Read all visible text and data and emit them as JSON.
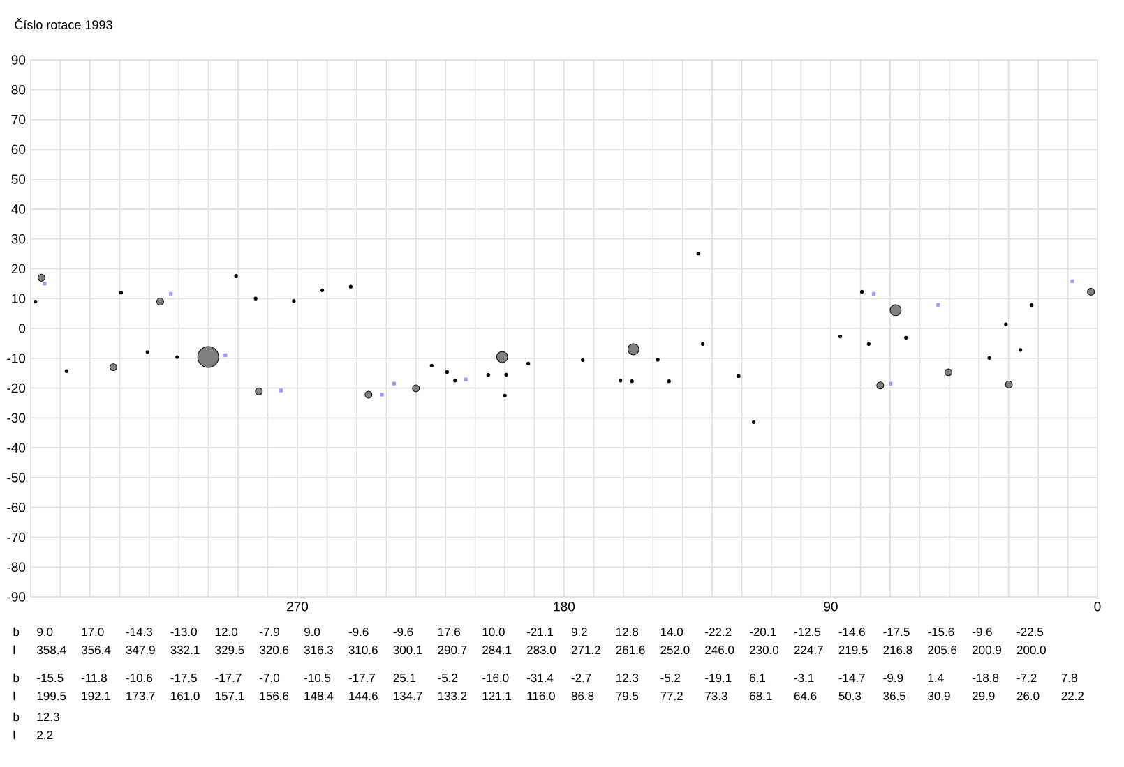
{
  "chart_data": {
    "type": "bubble",
    "title": "Číslo rotace 1993",
    "xlabel": "l",
    "ylabel": "b",
    "annotations": [
      "9.0",
      "358.4",
      "17.0",
      "356.4",
      "-14.3",
      "347.9",
      "-13.0",
      "332.1",
      "12.0",
      "329.5",
      "-7.9",
      "320.6",
      "9.0",
      "316.3",
      "-9.6",
      "310.6",
      "-9.6",
      "300.1",
      "17.6",
      "290.7",
      "10.0",
      "284.1",
      "-21.1",
      "283.0",
      "9.2",
      "271.2",
      "12.8",
      "261.6",
      "14.0",
      "252.0",
      "-22.2",
      "246.0",
      "-20.1",
      "230.0",
      "-12.5",
      "224.7",
      "-14.6",
      "219.5",
      "-17.5",
      "216.8",
      "-15.6",
      "205.6",
      "-9.6",
      "200.9",
      "-22.5",
      "200.0",
      "-15.5",
      "199.5",
      "-11.8",
      "192.1",
      "-10.6",
      "173.7",
      "-17.5",
      "161.0",
      "-17.7",
      "157.1",
      "-7.0",
      "156.6",
      "-10.5",
      "148.4",
      "-17.7",
      "144.6",
      "25.1",
      "134.7",
      "-5.2",
      "133.2",
      "-16.0",
      "121.1",
      "-31.4",
      "116.0",
      "-2.7",
      "86.8",
      "12.3",
      "79.5",
      "-5.2",
      "77.2",
      "-19.1",
      "73.3",
      "6.1",
      "68.1",
      "-3.1",
      "64.6",
      "-14.7",
      "50.3",
      "-9.9",
      "36.5",
      "1.4",
      "30.9",
      "-18.8",
      "29.9",
      "-7.2",
      "26.0",
      "7.8",
      "22.2",
      "12.3",
      "2.2"
    ],
    "xlim": [
      360,
      0
    ],
    "ylim": [
      -90,
      90
    ],
    "grid": true,
    "xticks": [
      {
        "value": 360,
        "label": null
      },
      {
        "value": 350,
        "label": null
      },
      {
        "value": 340,
        "label": null
      },
      {
        "value": 330,
        "label": null
      },
      {
        "value": 320,
        "label": null
      },
      {
        "value": 310,
        "label": null
      },
      {
        "value": 300,
        "label": null
      },
      {
        "value": 290,
        "label": null
      },
      {
        "value": 280,
        "label": null
      },
      270,
      {
        "value": 260,
        "label": null
      },
      {
        "value": 250,
        "label": null
      },
      {
        "value": 240,
        "label": null
      },
      {
        "value": 230,
        "label": null
      },
      {
        "value": 220,
        "label": null
      },
      {
        "value": 210,
        "label": null
      },
      {
        "value": 200,
        "label": null
      },
      {
        "value": 190,
        "label": null
      },
      180,
      {
        "value": 170,
        "label": null
      },
      {
        "value": 160,
        "label": null
      },
      {
        "value": 150,
        "label": null
      },
      {
        "value": 140,
        "label": null
      },
      {
        "value": 130,
        "label": null
      },
      {
        "value": 120,
        "label": null
      },
      {
        "value": 110,
        "label": null
      },
      {
        "value": 100,
        "label": null
      },
      90,
      {
        "value": 80,
        "label": null
      },
      {
        "value": 70,
        "label": null
      },
      {
        "value": 60,
        "label": null
      },
      {
        "value": 50,
        "label": null
      },
      {
        "value": 40,
        "label": null
      },
      {
        "value": 30,
        "label": null
      },
      {
        "value": 20,
        "label": null
      },
      {
        "value": 10,
        "label": null
      },
      0
    ],
    "yticks": [
      -90,
      -80,
      -70,
      -60,
      -50,
      -40,
      -30,
      -20,
      -10,
      0,
      10,
      20,
      30,
      40,
      50,
      60,
      70,
      80,
      90
    ],
    "series": [
      {
        "x": [
          358.4,
          356.4,
          347.9,
          332.1,
          329.5,
          320.6,
          316.3,
          310.6,
          300.1,
          290.7,
          284.1,
          283.0,
          271.2,
          261.6,
          252.0,
          246.0,
          230.0,
          224.7,
          219.5,
          216.8,
          205.6,
          200.9,
          200.0,
          199.5,
          192.1,
          173.7,
          161.0,
          157.1,
          156.6,
          148.4,
          144.6,
          134.7,
          133.2,
          121.1,
          116.0,
          86.8,
          79.5,
          77.2,
          73.3,
          68.1,
          64.6,
          50.3,
          36.5,
          30.9,
          29.9,
          26.0,
          22.2,
          2.2
        ],
        "values": [
          9.0,
          17.0,
          -14.3,
          -13.0,
          12.0,
          -7.9,
          9.0,
          -9.6,
          -9.6,
          17.6,
          10.0,
          -21.1,
          9.2,
          12.8,
          14.0,
          -22.2,
          -20.1,
          -12.5,
          -14.6,
          -17.5,
          -15.6,
          -9.6,
          -22.5,
          -15.5,
          -11.8,
          -10.6,
          -17.5,
          -17.7,
          -7.0,
          -10.5,
          -17.7,
          25.1,
          -5.2,
          -16.0,
          -31.4,
          -2.7,
          12.3,
          -5.2,
          -19.1,
          6.1,
          -3.1,
          -14.7,
          -9.9,
          1.4,
          -18.8,
          -7.2,
          7.8,
          12.3
        ],
        "sizes": [
          0.02,
          0.11,
          0.02,
          0.11,
          0.02,
          0.02,
          0.11,
          0.02,
          1,
          0.02,
          0.02,
          0.11,
          0.02,
          0.02,
          0.02,
          0.11,
          0.11,
          0.02,
          0.02,
          0.02,
          0.02,
          0.28,
          0.02,
          0.02,
          0.02,
          0.02,
          0.02,
          0.02,
          0.28,
          0.02,
          0.02,
          0.02,
          0.02,
          0.02,
          0.02,
          0.02,
          0.02,
          0.02,
          0.11,
          0.28,
          0.02,
          0.11,
          0.02,
          0.02,
          0.11,
          0.02,
          0.02,
          0.11
        ],
        "colors": [
          "#000000",
          "#808080",
          "#000000",
          "#808080",
          "#000000",
          "#000000",
          "#808080",
          "#000000",
          "#808080",
          "#000000",
          "#000000",
          "#808080",
          "#000000",
          "#000000",
          "#000000",
          "#808080",
          "#808080",
          "#000000",
          "#000000",
          "#000000",
          "#000000",
          "#808080",
          "#000000",
          "#000000",
          "#000000",
          "#000000",
          "#000000",
          "#000000",
          "#808080",
          "#000000",
          "#000000",
          "#000000",
          "#000000",
          "#000000",
          "#000000",
          "#000000",
          "#000000",
          "#000000",
          "#808080",
          "#808080",
          "#000000",
          "#808080",
          "#000000",
          "#000000",
          "#808080",
          "#000000",
          "#000000",
          "#808080"
        ]
      },
      {
        "type": "scatter",
        "marker": "square",
        "color": "#9999ff",
        "x": [
          355.3,
          312.7,
          294.3,
          275.5,
          241.5,
          237.4,
          213.2,
          75.5,
          69.8,
          53.8,
          8.5
        ],
        "values": [
          15,
          11.6,
          -9.0,
          -20.8,
          -22.2,
          -18.5,
          -17.1,
          11.6,
          -18.5,
          7.9,
          15.8
        ]
      }
    ]
  }
}
